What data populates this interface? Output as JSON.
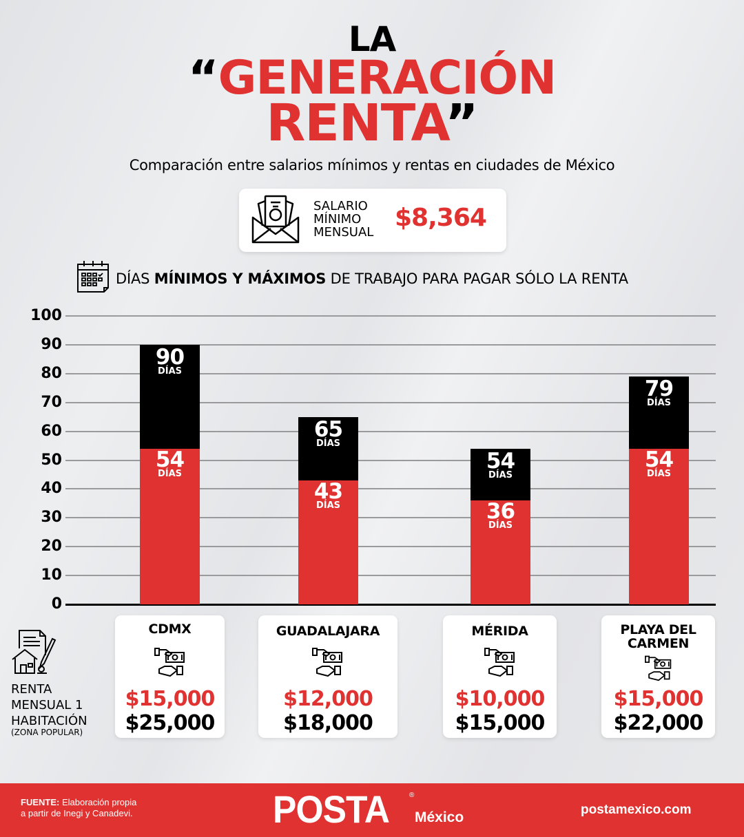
{
  "header": {
    "title_line1": "LA",
    "title_open_quote": "“",
    "title_line2": "GENERACIÓN",
    "title_line3": "RENTA",
    "title_close_quote": "”",
    "subtitle": "Comparación entre salarios mínimos y rentas en ciudades de México"
  },
  "salary": {
    "icon": "envelope-money-icon",
    "label_line1": "SALARIO",
    "label_line2": "MÍNIMO",
    "label_line3": "MENSUAL",
    "value": "$8,364"
  },
  "section": {
    "icon": "calendar-icon",
    "title_part1": "DÍAS ",
    "title_bold": "MÍNIMOS Y MÁXIMOS",
    "title_part2": " DE TRABAJO PARA PAGAR SÓLO LA RENTA"
  },
  "chart_data": {
    "type": "bar",
    "stacked_overlay": true,
    "title": "DÍAS MÍNIMOS Y MÁXIMOS DE TRABAJO PARA PAGAR SÓLO LA RENTA",
    "categories": [
      "CDMX",
      "GUADALAJARA",
      "MÉRIDA",
      "PLAYA DEL CARMEN"
    ],
    "series": [
      {
        "name": "Días mínimos",
        "color": "#e03230",
        "values": [
          54,
          43,
          36,
          54
        ]
      },
      {
        "name": "Días máximos",
        "color": "#000000",
        "values": [
          90,
          65,
          54,
          79
        ]
      }
    ],
    "unit_label": "DÍAS",
    "yticks": [
      0,
      10,
      20,
      30,
      40,
      50,
      60,
      70,
      80,
      90,
      100
    ],
    "ylim": [
      0,
      100
    ],
    "grid": true,
    "xlabel": "",
    "ylabel": ""
  },
  "rent_legend": {
    "icon": "house-contract-icon",
    "line1": "RENTA",
    "line2": "MENSUAL 1",
    "line3": "HABITACIÓN",
    "note": "(ZONA POPULAR)"
  },
  "cities": [
    {
      "name_line1": "CDMX",
      "name_line2": "",
      "rent_min": "$15,000",
      "rent_max": "$25,000",
      "icon": "money-hands-icon"
    },
    {
      "name_line1": "GUADALAJARA",
      "name_line2": "",
      "rent_min": "$12,000",
      "rent_max": "$18,000",
      "icon": "money-hands-icon"
    },
    {
      "name_line1": "MÉRIDA",
      "name_line2": "",
      "rent_min": "$10,000",
      "rent_max": "$15,000",
      "icon": "money-hands-icon"
    },
    {
      "name_line1": "PLAYA DEL",
      "name_line2": "CARMEN",
      "rent_min": "$15,000",
      "rent_max": "$22,000",
      "icon": "money-hands-icon"
    }
  ],
  "footer": {
    "source_label": "FUENTE:",
    "source_text1": " Elaboración propia",
    "source_text2": "a partir de Inegi y Canadevi.",
    "logo": "POSTA",
    "logo_reg": "®",
    "logo_sub": "México",
    "url": "postamexico.com"
  },
  "colors": {
    "accent_red": "#e03230",
    "black": "#000000",
    "background": "#e6e7ea"
  }
}
